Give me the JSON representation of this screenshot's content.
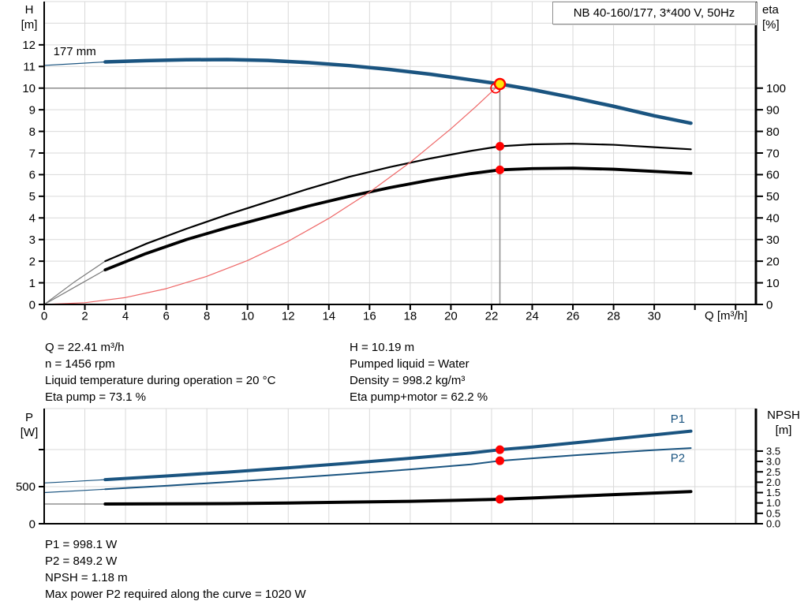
{
  "colors": {
    "curve_blue": "#1a5480",
    "grid": "#d9d9d9",
    "axis": "#000000",
    "duty_gray": "#8c8c8c",
    "lead_gray": "#7a7a7a",
    "red": "#ff0000",
    "system_red": "#ee6666",
    "yellow": "#ffe60a"
  },
  "axis_titles": {
    "top_left_1": "H",
    "top_left_2": "[m]",
    "top_right_1": "eta",
    "top_right_2": "[%]",
    "bottom_left_1": "P",
    "bottom_left_2": "[W]",
    "bottom_right_1": "NPSH",
    "bottom_right_2": "[m]",
    "x_label": "Q [m³/h]"
  },
  "info_top": {
    "left": [
      "Q = 22.41 m³/h",
      "n = 1456 rpm",
      "Liquid temperature during operation = 20 °C",
      "Eta pump = 73.1 %"
    ],
    "right": [
      "H = 10.19 m",
      "Pumped liquid = Water",
      "Density = 998.2 kg/m³",
      "Eta pump+motor = 62.2 %"
    ]
  },
  "info_bottom": [
    "P1 = 998.1 W",
    "P2 = 849.2 W",
    "NPSH = 1.18 m",
    "Max power P2 required along the curve = 1020 W"
  ],
  "chart_data": [
    {
      "type": "line",
      "title": "NB 40-160/177, 3*400 V, 50Hz",
      "xlabel": "Q [m³/h]",
      "ylabel_left": "H [m]",
      "ylabel_right": "eta [%]",
      "x_range": [
        0,
        35
      ],
      "y_left_range": [
        0,
        14
      ],
      "y_right_range": [
        0,
        140
      ],
      "x_ticks": [
        0,
        2,
        4,
        6,
        8,
        10,
        12,
        14,
        16,
        18,
        20,
        22,
        24,
        26,
        28,
        30,
        {
          "v": 32,
          "label": ""
        },
        {
          "v": 34,
          "label": ""
        }
      ],
      "x_grid": [
        2,
        4,
        6,
        8,
        10,
        12,
        14,
        16,
        18,
        20,
        22,
        24,
        26,
        28,
        30,
        32,
        34
      ],
      "y_left_ticks": [
        0,
        1,
        2,
        3,
        4,
        5,
        6,
        7,
        8,
        9,
        10,
        11,
        12
      ],
      "y_left_grid": [
        1,
        2,
        3,
        4,
        5,
        6,
        7,
        8,
        9,
        10,
        11,
        12,
        13
      ],
      "y_right_ticks": [
        0,
        10,
        20,
        30,
        40,
        50,
        60,
        70,
        80,
        90,
        100
      ],
      "series": [
        {
          "name": "head-curve-177mm",
          "axis": "left",
          "color": "curve_blue",
          "width": 4.5,
          "lead_color": "curve_blue",
          "lead": [
            [
              0,
              11.05
            ],
            [
              1.5,
              11.13
            ],
            [
              3,
              11.21
            ]
          ],
          "points": [
            [
              3,
              11.21
            ],
            [
              5,
              11.27
            ],
            [
              7,
              11.31
            ],
            [
              9,
              11.32
            ],
            [
              11,
              11.28
            ],
            [
              13,
              11.18
            ],
            [
              15,
              11.04
            ],
            [
              17,
              10.86
            ],
            [
              19,
              10.64
            ],
            [
              21,
              10.38
            ],
            [
              22.41,
              10.19
            ],
            [
              24,
              9.93
            ],
            [
              26,
              9.56
            ],
            [
              28,
              9.16
            ],
            [
              30,
              8.72
            ],
            [
              31.8,
              8.38
            ]
          ]
        },
        {
          "name": "eta-pump-curve",
          "axis": "right",
          "color": "axis",
          "width": 2.2,
          "lead_color": "lead_gray",
          "lead": [
            [
              0,
              0
            ],
            [
              1.5,
              10.5
            ],
            [
              3,
              20
            ]
          ],
          "points": [
            [
              3,
              20
            ],
            [
              5,
              28
            ],
            [
              7,
              35
            ],
            [
              9,
              41.5
            ],
            [
              11,
              47.5
            ],
            [
              13,
              53.5
            ],
            [
              15,
              59
            ],
            [
              17,
              63.5
            ],
            [
              19,
              67.5
            ],
            [
              21,
              71
            ],
            [
              22.41,
              73.1
            ],
            [
              24,
              74
            ],
            [
              26,
              74.3
            ],
            [
              28,
              73.8
            ],
            [
              30,
              72.7
            ],
            [
              31.8,
              71.7
            ]
          ]
        },
        {
          "name": "eta-pump-motor-curve",
          "axis": "right",
          "color": "axis",
          "width": 3.8,
          "lead_color": "lead_gray",
          "lead": [
            [
              0,
              0
            ],
            [
              1.5,
              8
            ],
            [
              3,
              16
            ]
          ],
          "points": [
            [
              3,
              16
            ],
            [
              5,
              23.5
            ],
            [
              7,
              30
            ],
            [
              9,
              35.5
            ],
            [
              11,
              40.5
            ],
            [
              13,
              45.5
            ],
            [
              15,
              50
            ],
            [
              17,
              54
            ],
            [
              19,
              57.5
            ],
            [
              21,
              60.5
            ],
            [
              22.41,
              62.2
            ],
            [
              24,
              62.8
            ],
            [
              26,
              63
            ],
            [
              28,
              62.5
            ],
            [
              30,
              61.5
            ],
            [
              31.8,
              60.6
            ]
          ]
        },
        {
          "name": "system-curve",
          "axis": "left",
          "color": "system_red",
          "width": 1.2,
          "lead_color": "system_red",
          "lead": [],
          "points": [
            [
              0,
              0
            ],
            [
              2,
              0.08
            ],
            [
              4,
              0.32
            ],
            [
              6,
              0.73
            ],
            [
              8,
              1.3
            ],
            [
              10,
              2.03
            ],
            [
              12,
              2.92
            ],
            [
              14,
              3.98
            ],
            [
              16,
              5.19
            ],
            [
              18,
              6.57
            ],
            [
              20,
              8.12
            ],
            [
              21.2,
              9.12
            ],
            [
              22.2,
              10.0
            ]
          ]
        }
      ],
      "duty_lines": {
        "vertical": {
          "q": 22.41,
          "to": 10.19
        },
        "horizontal": {
          "h": 10.0,
          "to": 22.2
        }
      },
      "markers": [
        {
          "name": "eta-pump-point",
          "q": 22.41,
          "v": 73.1,
          "axis": "right",
          "style": "red-dot"
        },
        {
          "name": "eta-pump-motor-point",
          "q": 22.41,
          "v": 62.2,
          "axis": "right",
          "style": "red-dot"
        },
        {
          "name": "requested-duty-point",
          "q": 22.2,
          "v": 10.0,
          "axis": "left",
          "style": "open-red"
        },
        {
          "name": "actual-duty-point",
          "q": 22.41,
          "v": 10.19,
          "axis": "left",
          "style": "yellow-dot"
        }
      ],
      "annotations": [
        {
          "name": "impeller-diameter-label",
          "text": "177 mm",
          "q": 0.45,
          "v": 11.72,
          "axis": "left",
          "color": "axis"
        }
      ]
    },
    {
      "type": "line",
      "title": "",
      "xlabel": "",
      "ylabel_left": "P [W]",
      "ylabel_right": "NPSH [m]",
      "x_range": [
        0,
        35
      ],
      "y_left_range": [
        0,
        1553
      ],
      "y_right_range": [
        0,
        5.55
      ],
      "x_ticks": [],
      "x_grid": [
        2,
        4,
        6,
        8,
        10,
        12,
        14,
        16,
        18,
        20,
        22,
        24,
        26,
        28,
        30,
        32,
        34
      ],
      "y_left_ticks": [
        {
          "v": 0,
          "label": "0"
        },
        {
          "v": 500,
          "label": "500"
        },
        {
          "v": 1000,
          "label": ""
        }
      ],
      "y_left_grid": [
        500,
        1000
      ],
      "y_right_ticks": [
        {
          "v": 0,
          "label": "0.0"
        },
        {
          "v": 0.5,
          "label": "0.5"
        },
        {
          "v": 1,
          "label": "1.0"
        },
        {
          "v": 1.5,
          "label": "1.5"
        },
        {
          "v": 2,
          "label": "2.0"
        },
        {
          "v": 2.5,
          "label": "2.5"
        },
        {
          "v": 3,
          "label": "3.0"
        },
        {
          "v": 3.5,
          "label": "3.5"
        }
      ],
      "series": [
        {
          "name": "p1-curve",
          "axis": "left",
          "color": "curve_blue",
          "width": 4,
          "lead_color": "curve_blue",
          "lead": [
            [
              0,
              550
            ],
            [
              1.5,
              571
            ],
            [
              3,
              594
            ]
          ],
          "points": [
            [
              3,
              594
            ],
            [
              6,
              643
            ],
            [
              9,
              696
            ],
            [
              12,
              754
            ],
            [
              15,
              816
            ],
            [
              18,
              883
            ],
            [
              21,
              954
            ],
            [
              22.41,
              998
            ],
            [
              24,
              1035
            ],
            [
              27,
              1115
            ],
            [
              30,
              1198
            ],
            [
              31.8,
              1248
            ]
          ]
        },
        {
          "name": "p2-curve",
          "axis": "left",
          "color": "curve_blue",
          "width": 2,
          "lead_color": "curve_blue",
          "lead": [
            [
              0,
              420
            ],
            [
              1.5,
              442
            ],
            [
              3,
              465
            ]
          ],
          "points": [
            [
              3,
              465
            ],
            [
              6,
              512
            ],
            [
              9,
              562
            ],
            [
              12,
              615
            ],
            [
              15,
              672
            ],
            [
              18,
              732
            ],
            [
              21,
              800
            ],
            [
              22.41,
              849
            ],
            [
              24,
              882
            ],
            [
              26,
              922
            ],
            [
              28,
              958
            ],
            [
              30,
              993
            ],
            [
              31.8,
              1020
            ]
          ]
        },
        {
          "name": "npsh-curve",
          "axis": "right",
          "color": "axis",
          "width": 4,
          "lead_color": "lead_gray",
          "lead": [
            [
              0,
              0.95
            ],
            [
              1.5,
              0.95
            ],
            [
              3,
              0.95
            ]
          ],
          "points": [
            [
              3,
              0.95
            ],
            [
              6,
              0.96
            ],
            [
              9,
              0.97
            ],
            [
              12,
              1.0
            ],
            [
              15,
              1.04
            ],
            [
              18,
              1.08
            ],
            [
              20,
              1.12
            ],
            [
              22.41,
              1.18
            ],
            [
              24,
              1.24
            ],
            [
              26,
              1.32
            ],
            [
              28,
              1.4
            ],
            [
              30,
              1.48
            ],
            [
              31.8,
              1.55
            ]
          ]
        }
      ],
      "duty_lines": null,
      "markers": [
        {
          "name": "p1-point",
          "q": 22.41,
          "v": 998,
          "axis": "left",
          "style": "red-dot"
        },
        {
          "name": "p2-point",
          "q": 22.41,
          "v": 849,
          "axis": "left",
          "style": "red-dot"
        },
        {
          "name": "npsh-point",
          "q": 22.41,
          "v": 1.18,
          "axis": "right",
          "style": "red-dot"
        }
      ],
      "annotations": [
        {
          "name": "p1-label",
          "text": "P1",
          "q": 30.8,
          "v": 1420,
          "axis": "left",
          "color": "curve_blue"
        },
        {
          "name": "p2-label",
          "text": "P2",
          "q": 30.8,
          "v": 890,
          "axis": "left",
          "color": "curve_blue"
        }
      ]
    }
  ]
}
